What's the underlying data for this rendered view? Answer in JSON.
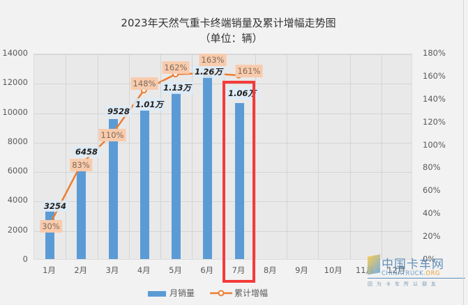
{
  "title": "2023年天然气重卡终端销量及累计增幅走势图",
  "subtitle": "（单位：辆）",
  "colors": {
    "bar": "#5b9bd5",
    "line": "#ed7d31",
    "pct_label_bg": "#f8cbad",
    "highlight": "#f53a3a",
    "background": "#f2f2f2",
    "plot_bg": "#e9e9e9"
  },
  "legend": {
    "bar_label": "月销量",
    "line_label": "累计增幅"
  },
  "y_left_ticks": [
    "0",
    "2000",
    "4000",
    "6000",
    "8000",
    "10000",
    "12000",
    "14000"
  ],
  "y_right_ticks": [
    "0%",
    "20%",
    "40%",
    "60%",
    "80%",
    "100%",
    "120%",
    "140%",
    "160%",
    "180%"
  ],
  "x_ticks": [
    "1月",
    "2月",
    "3月",
    "4月",
    "5月",
    "6月",
    "7月",
    "8月",
    "9月",
    "10月",
    "11月",
    "12月"
  ],
  "value_labels": [
    "3254",
    "6458",
    "9528",
    "1.01万",
    "1.13万",
    "1.26万",
    "1.06万"
  ],
  "pct_labels": [
    "30%",
    "83%",
    "110%",
    "148%",
    "162%",
    "163%",
    "161%"
  ],
  "watermark": {
    "cn": "中国卡车网",
    "en": "CHINATRUCK",
    "org": ".ORG",
    "slogan": "因为卡车所以朋友"
  },
  "chart_data": {
    "type": "bar+line",
    "title": "2023年天然气重卡终端销量及累计增幅走势图",
    "subtitle": "（单位：辆）",
    "categories": [
      "1月",
      "2月",
      "3月",
      "4月",
      "5月",
      "6月",
      "7月",
      "8月",
      "9月",
      "10月",
      "11月",
      "12月"
    ],
    "series": [
      {
        "name": "月销量",
        "type": "bar",
        "axis": "left",
        "values": [
          3254,
          6458,
          9528,
          10100,
          11300,
          12600,
          10600,
          null,
          null,
          null,
          null,
          null
        ],
        "labels": [
          "3254",
          "6458",
          "9528",
          "1.01万",
          "1.13万",
          "1.26万",
          "1.06万"
        ]
      },
      {
        "name": "累计增幅",
        "type": "line",
        "axis": "right",
        "values": [
          30,
          83,
          110,
          148,
          162,
          163,
          161,
          null,
          null,
          null,
          null,
          null
        ],
        "labels": [
          "30%",
          "83%",
          "110%",
          "148%",
          "162%",
          "163%",
          "161%"
        ]
      }
    ],
    "y_left": {
      "min": 0,
      "max": 14000,
      "step": 2000
    },
    "y_right": {
      "min": 0,
      "max": 180,
      "step": 20,
      "unit": "%"
    },
    "grid": true,
    "legend_position": "bottom",
    "annotations": [
      {
        "type": "highlight-box",
        "category": "7月",
        "color": "#f53a3a"
      }
    ]
  }
}
